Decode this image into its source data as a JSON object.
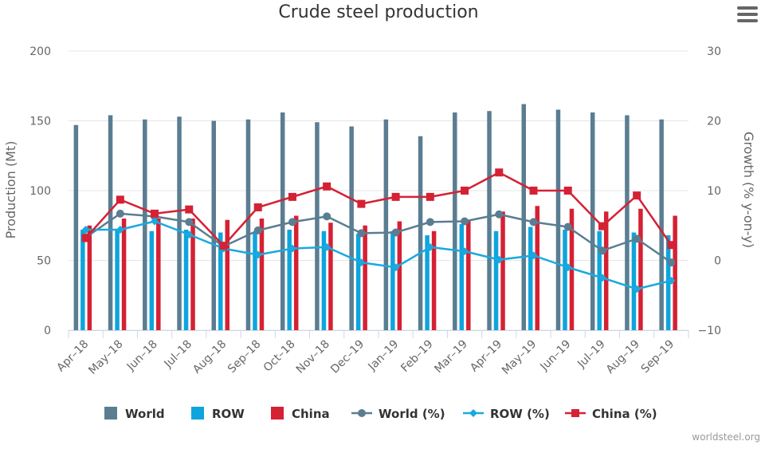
{
  "chart_data": {
    "type": "bar",
    "title": "Crude steel production",
    "ylabel": "Production (Mt)",
    "y2label": "Growth (% y-on-y)",
    "ylim": [
      0,
      200
    ],
    "y2lim": [
      -10,
      30
    ],
    "yticks": [
      "0",
      "50",
      "100",
      "150",
      "200"
    ],
    "y2ticks": [
      "−10",
      "0",
      "10",
      "20",
      "30"
    ],
    "grid": true,
    "legend_position": "bottom",
    "categories": [
      "Apr–18",
      "May–18",
      "Jun–18",
      "Jul–18",
      "Aug–18",
      "Sep–18",
      "Oct–18",
      "Nov–18",
      "Dec–19",
      "Jan–19",
      "Feb–19",
      "Mar–19",
      "Apr–19",
      "May–19",
      "Jun–19",
      "Jul–19",
      "Aug–19",
      "Sep–19"
    ],
    "bar_series": [
      {
        "name": "World",
        "color": "#5a7d91",
        "values": [
          147,
          154,
          151,
          153,
          150,
          151,
          156,
          149,
          146,
          151,
          139,
          156,
          157,
          162,
          158,
          156,
          154,
          151
        ]
      },
      {
        "name": "ROW",
        "color": "#0ea5dd",
        "values": [
          72,
          72,
          71,
          72,
          70,
          70,
          72,
          71,
          69,
          71,
          68,
          76,
          71,
          74,
          72,
          71,
          70,
          68
        ]
      },
      {
        "name": "China",
        "color": "#d52134",
        "values": [
          75,
          80,
          80,
          80,
          79,
          80,
          82,
          77,
          75,
          78,
          71,
          79,
          85,
          89,
          87,
          85,
          87,
          82
        ]
      }
    ],
    "line_series": [
      {
        "name": "World (%)",
        "color": "#5a7d91",
        "marker": "circle",
        "values": [
          3.3,
          6.7,
          6.3,
          5.5,
          2.0,
          4.3,
          5.5,
          6.3,
          3.9,
          4.0,
          5.5,
          5.6,
          6.6,
          5.5,
          4.8,
          1.4,
          3.1,
          -0.3
        ]
      },
      {
        "name": "ROW (%)",
        "color": "#1aa9de",
        "marker": "diamond",
        "values": [
          4.4,
          4.4,
          5.6,
          3.7,
          1.7,
          0.8,
          1.7,
          1.9,
          -0.3,
          -1.0,
          1.9,
          1.3,
          0.1,
          0.7,
          -1.0,
          -2.5,
          -4.1,
          -2.9
        ]
      },
      {
        "name": "China (%)",
        "color": "#d52134",
        "marker": "square",
        "values": [
          3.2,
          8.7,
          6.7,
          7.3,
          2.1,
          7.6,
          9.1,
          10.6,
          8.1,
          9.1,
          9.1,
          10.0,
          12.6,
          10.0,
          10.0,
          4.9,
          9.3,
          2.2
        ]
      }
    ]
  },
  "menu_icon": "hamburger-menu-icon",
  "credit": "worldsteel.org"
}
